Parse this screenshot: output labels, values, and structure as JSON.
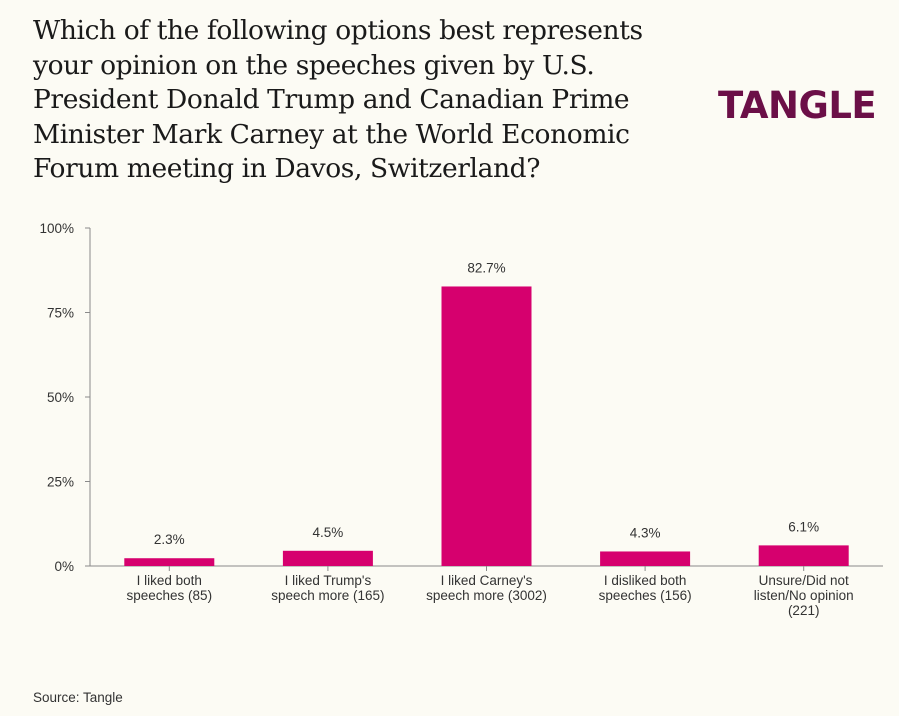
{
  "title": "Which of the following options best represents your opinion on the speeches given by U.S. President Donald Trump and Canadian Prime Minister Mark Carney at the World Economic Forum meeting in Davos, Switzerland?",
  "logo": "TANGLE",
  "source": "Source: Tangle",
  "colors": {
    "background": "#fcfbf4",
    "bar": "#d6006e",
    "logo": "#6b0f47",
    "axis": "#8a8a8a"
  },
  "chart_data": {
    "type": "bar",
    "categories": [
      "I liked both speeches (85)",
      "I liked Trump's speech more (165)",
      "I liked Carney's speech more (3002)",
      "I disliked both speeches (156)",
      "Unsure/Did not listen/No opinion (221)"
    ],
    "category_lines": [
      [
        "I liked both",
        "speeches (85)"
      ],
      [
        "I liked Trump's",
        "speech more (165)"
      ],
      [
        "I liked Carney's",
        "speech more (3002)"
      ],
      [
        "I disliked both",
        "speeches (156)"
      ],
      [
        "Unsure/Did not",
        "listen/No opinion",
        "(221)"
      ]
    ],
    "values": [
      2.3,
      4.5,
      82.7,
      4.3,
      6.1
    ],
    "value_labels": [
      "2.3%",
      "4.5%",
      "82.7%",
      "4.3%",
      "6.1%"
    ],
    "yticks": [
      0,
      25,
      50,
      75,
      100
    ],
    "ytick_labels": [
      "0%",
      "25%",
      "50%",
      "75%",
      "100%"
    ],
    "ylim": [
      0,
      100
    ],
    "xlabel": "",
    "ylabel": ""
  }
}
